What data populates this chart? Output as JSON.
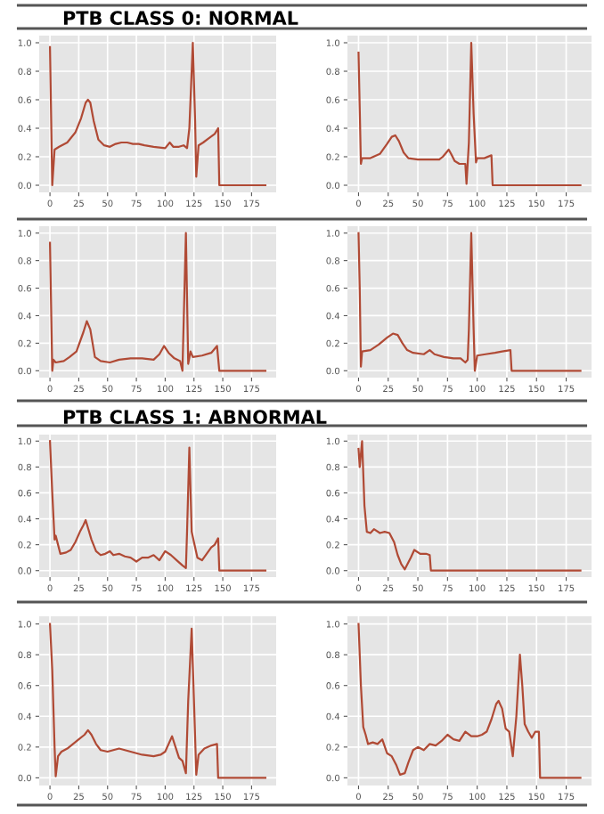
{
  "chart_data": [
    {
      "type": "line",
      "title": "PTB CLASS 0: NORMAL",
      "x": [
        0,
        2,
        4,
        8,
        15,
        22,
        27,
        31,
        33,
        35,
        38,
        42,
        47,
        52,
        57,
        62,
        67,
        72,
        77,
        82,
        90,
        100,
        104,
        107,
        112,
        116,
        119,
        121,
        124,
        126,
        127,
        129,
        133,
        138,
        143,
        146,
        147,
        187
      ],
      "series": [
        {
          "color": "#b04a35",
          "values": [
            0.97,
            0.0,
            0.25,
            0.27,
            0.3,
            0.37,
            0.47,
            0.58,
            0.6,
            0.58,
            0.45,
            0.32,
            0.28,
            0.27,
            0.29,
            0.3,
            0.3,
            0.29,
            0.29,
            0.28,
            0.27,
            0.26,
            0.3,
            0.27,
            0.27,
            0.28,
            0.26,
            0.4,
            1.0,
            0.45,
            0.06,
            0.28,
            0.3,
            0.33,
            0.36,
            0.4,
            0.0,
            0.0
          ]
        }
      ],
      "xlim": [
        -9.35,
        196.35
      ],
      "ylim": [
        -0.05,
        1.05
      ],
      "xticks": [
        0,
        25,
        50,
        75,
        100,
        125,
        150,
        175
      ],
      "yticks": [
        {
          "value": 0,
          "label": "0.0"
        },
        {
          "value": 0.2,
          "label": "0.2"
        },
        {
          "value": 0.4,
          "label": "0.4"
        },
        {
          "value": 0.6,
          "label": "0.6"
        },
        {
          "value": 0.8,
          "label": "0.8"
        },
        {
          "value": 1,
          "label": "1.0"
        }
      ],
      "grid": true
    },
    {
      "type": "line",
      "x": [
        0,
        2,
        3,
        10,
        18,
        24,
        28,
        31,
        34,
        38,
        42,
        50,
        60,
        68,
        71,
        74,
        76,
        78,
        81,
        85,
        90,
        91,
        93,
        95,
        97,
        99,
        100,
        106,
        112,
        113,
        187
      ],
      "series": [
        {
          "color": "#b04a35",
          "values": [
            0.93,
            0.15,
            0.19,
            0.19,
            0.22,
            0.29,
            0.34,
            0.35,
            0.31,
            0.23,
            0.19,
            0.18,
            0.18,
            0.18,
            0.2,
            0.23,
            0.25,
            0.22,
            0.17,
            0.15,
            0.15,
            0.01,
            0.3,
            1.0,
            0.5,
            0.16,
            0.19,
            0.19,
            0.21,
            0.0,
            0.0
          ]
        }
      ],
      "xlim": [
        -9.35,
        196.35
      ],
      "ylim": [
        -0.05,
        1.05
      ],
      "xticks": [
        0,
        25,
        50,
        75,
        100,
        125,
        150,
        175
      ],
      "yticks": [
        {
          "value": 0,
          "label": "0.0"
        },
        {
          "value": 0.2,
          "label": "0.2"
        },
        {
          "value": 0.4,
          "label": "0.4"
        },
        {
          "value": 0.6,
          "label": "0.6"
        },
        {
          "value": 0.8,
          "label": "0.8"
        },
        {
          "value": 1,
          "label": "1.0"
        }
      ],
      "grid": true
    },
    {
      "type": "line",
      "x": [
        0,
        2,
        3,
        5,
        12,
        17,
        23,
        29,
        32,
        35,
        39,
        44,
        52,
        60,
        70,
        80,
        90,
        95,
        99,
        103,
        108,
        113,
        115,
        118,
        120,
        122,
        124,
        132,
        140,
        145,
        147,
        187
      ],
      "series": [
        {
          "color": "#b04a35",
          "values": [
            0.93,
            0.0,
            0.08,
            0.06,
            0.07,
            0.1,
            0.14,
            0.28,
            0.36,
            0.3,
            0.1,
            0.07,
            0.06,
            0.08,
            0.09,
            0.09,
            0.08,
            0.12,
            0.18,
            0.13,
            0.09,
            0.07,
            0.0,
            1.0,
            0.05,
            0.14,
            0.1,
            0.11,
            0.13,
            0.18,
            0.0,
            0.0
          ]
        }
      ],
      "xlim": [
        -9.35,
        196.35
      ],
      "ylim": [
        -0.05,
        1.05
      ],
      "xticks": [
        0,
        25,
        50,
        75,
        100,
        125,
        150,
        175
      ],
      "yticks": [
        {
          "value": 0,
          "label": "0.0"
        },
        {
          "value": 0.2,
          "label": "0.2"
        },
        {
          "value": 0.4,
          "label": "0.4"
        },
        {
          "value": 0.6,
          "label": "0.6"
        },
        {
          "value": 0.8,
          "label": "0.8"
        },
        {
          "value": 1,
          "label": "1.0"
        }
      ],
      "grid": true
    },
    {
      "type": "line",
      "x": [
        0,
        1,
        2,
        3,
        10,
        17,
        24,
        29,
        33,
        37,
        41,
        46,
        55,
        60,
        64,
        72,
        80,
        86,
        90,
        92,
        93,
        95,
        97,
        98,
        100,
        107,
        115,
        121,
        128,
        129,
        187
      ],
      "series": [
        {
          "color": "#b04a35",
          "values": [
            1.0,
            0.6,
            0.03,
            0.14,
            0.15,
            0.19,
            0.24,
            0.27,
            0.26,
            0.2,
            0.15,
            0.13,
            0.12,
            0.15,
            0.12,
            0.1,
            0.09,
            0.09,
            0.06,
            0.08,
            0.3,
            1.0,
            0.3,
            0.0,
            0.11,
            0.12,
            0.13,
            0.14,
            0.15,
            0.0,
            0.0
          ]
        }
      ],
      "xlim": [
        -9.35,
        196.35
      ],
      "ylim": [
        -0.05,
        1.05
      ],
      "xticks": [
        0,
        25,
        50,
        75,
        100,
        125,
        150,
        175
      ],
      "yticks": [
        {
          "value": 0,
          "label": "0.0"
        },
        {
          "value": 0.2,
          "label": "0.2"
        },
        {
          "value": 0.4,
          "label": "0.4"
        },
        {
          "value": 0.6,
          "label": "0.6"
        },
        {
          "value": 0.8,
          "label": "0.8"
        },
        {
          "value": 1,
          "label": "1.0"
        }
      ],
      "grid": true
    },
    {
      "type": "line",
      "title": "PTB CLASS 1: ABNORMAL",
      "x": [
        0,
        2,
        4,
        5,
        7,
        9,
        14,
        18,
        22,
        26,
        29,
        31,
        33,
        36,
        40,
        44,
        48,
        52,
        55,
        60,
        65,
        70,
        75,
        80,
        85,
        90,
        95,
        100,
        105,
        110,
        115,
        118,
        119,
        121,
        123,
        125,
        128,
        132,
        136,
        140,
        143,
        146,
        147,
        187
      ],
      "series": [
        {
          "color": "#b04a35",
          "values": [
            1.0,
            0.6,
            0.24,
            0.27,
            0.2,
            0.13,
            0.14,
            0.16,
            0.22,
            0.3,
            0.35,
            0.39,
            0.33,
            0.24,
            0.15,
            0.12,
            0.13,
            0.15,
            0.12,
            0.13,
            0.11,
            0.1,
            0.07,
            0.1,
            0.1,
            0.12,
            0.08,
            0.15,
            0.12,
            0.08,
            0.04,
            0.02,
            0.3,
            0.95,
            0.3,
            0.22,
            0.1,
            0.08,
            0.13,
            0.18,
            0.2,
            0.25,
            0.0,
            0.0
          ]
        }
      ],
      "xlim": [
        -9.35,
        196.35
      ],
      "ylim": [
        -0.05,
        1.05
      ],
      "xticks": [
        0,
        25,
        50,
        75,
        100,
        125,
        150,
        175
      ],
      "yticks": [
        {
          "value": 0,
          "label": "0.0"
        },
        {
          "value": 0.2,
          "label": "0.2"
        },
        {
          "value": 0.4,
          "label": "0.4"
        },
        {
          "value": 0.6,
          "label": "0.6"
        },
        {
          "value": 0.8,
          "label": "0.8"
        },
        {
          "value": 1,
          "label": "1.0"
        }
      ],
      "grid": true
    },
    {
      "type": "line",
      "x": [
        0,
        1,
        3,
        5,
        7,
        10,
        13,
        18,
        22,
        26,
        30,
        33,
        36,
        39,
        44,
        47,
        52,
        57,
        60,
        61,
        187
      ],
      "series": [
        {
          "color": "#b04a35",
          "values": [
            0.94,
            0.8,
            1.0,
            0.5,
            0.3,
            0.29,
            0.32,
            0.29,
            0.3,
            0.29,
            0.22,
            0.12,
            0.05,
            0.01,
            0.1,
            0.16,
            0.13,
            0.13,
            0.12,
            0.0,
            0.0
          ]
        }
      ],
      "xlim": [
        -9.35,
        196.35
      ],
      "ylim": [
        -0.05,
        1.05
      ],
      "xticks": [
        0,
        25,
        50,
        75,
        100,
        125,
        150,
        175
      ],
      "yticks": [
        {
          "value": 0,
          "label": "0.0"
        },
        {
          "value": 0.2,
          "label": "0.2"
        },
        {
          "value": 0.4,
          "label": "0.4"
        },
        {
          "value": 0.6,
          "label": "0.6"
        },
        {
          "value": 0.8,
          "label": "0.8"
        },
        {
          "value": 1,
          "label": "1.0"
        }
      ],
      "grid": true
    },
    {
      "type": "line",
      "x": [
        0,
        2,
        4,
        5,
        7,
        10,
        15,
        20,
        25,
        30,
        33,
        36,
        40,
        44,
        50,
        60,
        70,
        80,
        90,
        96,
        100,
        103,
        106,
        109,
        112,
        115,
        118,
        120,
        123,
        125,
        127,
        129,
        134,
        140,
        145,
        146,
        187
      ],
      "series": [
        {
          "color": "#b04a35",
          "values": [
            1.0,
            0.7,
            0.2,
            0.01,
            0.14,
            0.17,
            0.19,
            0.22,
            0.25,
            0.28,
            0.31,
            0.28,
            0.22,
            0.18,
            0.17,
            0.19,
            0.17,
            0.15,
            0.14,
            0.15,
            0.17,
            0.22,
            0.27,
            0.2,
            0.13,
            0.11,
            0.03,
            0.5,
            0.97,
            0.5,
            0.02,
            0.15,
            0.19,
            0.21,
            0.22,
            0.0,
            0.0
          ]
        }
      ],
      "xlim": [
        -9.35,
        196.35
      ],
      "ylim": [
        -0.05,
        1.05
      ],
      "xticks": [
        0,
        25,
        50,
        75,
        100,
        125,
        150,
        175
      ],
      "yticks": [
        {
          "value": 0,
          "label": "0.0"
        },
        {
          "value": 0.2,
          "label": "0.2"
        },
        {
          "value": 0.4,
          "label": "0.4"
        },
        {
          "value": 0.6,
          "label": "0.6"
        },
        {
          "value": 0.8,
          "label": "0.8"
        },
        {
          "value": 1,
          "label": "1.0"
        }
      ],
      "grid": true
    },
    {
      "type": "line",
      "x": [
        0,
        2,
        4,
        6,
        8,
        12,
        16,
        20,
        24,
        28,
        32,
        35,
        39,
        42,
        46,
        50,
        55,
        60,
        65,
        70,
        75,
        80,
        85,
        90,
        95,
        100,
        104,
        108,
        112,
        116,
        118,
        121,
        124,
        127,
        130,
        133,
        136,
        138,
        140,
        143,
        146,
        149,
        152,
        153,
        187
      ],
      "series": [
        {
          "color": "#b04a35",
          "values": [
            1.0,
            0.6,
            0.33,
            0.28,
            0.22,
            0.23,
            0.22,
            0.25,
            0.16,
            0.14,
            0.08,
            0.02,
            0.03,
            0.1,
            0.18,
            0.2,
            0.18,
            0.22,
            0.21,
            0.24,
            0.28,
            0.25,
            0.24,
            0.3,
            0.27,
            0.27,
            0.28,
            0.3,
            0.38,
            0.48,
            0.5,
            0.45,
            0.32,
            0.3,
            0.14,
            0.4,
            0.8,
            0.6,
            0.35,
            0.3,
            0.26,
            0.3,
            0.3,
            0.0,
            0.0
          ]
        }
      ],
      "xlim": [
        -9.35,
        196.35
      ],
      "ylim": [
        -0.05,
        1.05
      ],
      "xticks": [
        0,
        25,
        50,
        75,
        100,
        125,
        150,
        175
      ],
      "yticks": [
        {
          "value": 0,
          "label": "0.0"
        },
        {
          "value": 0.2,
          "label": "0.2"
        },
        {
          "value": 0.4,
          "label": "0.4"
        },
        {
          "value": 0.6,
          "label": "0.6"
        },
        {
          "value": 0.8,
          "label": "0.8"
        },
        {
          "value": 1,
          "label": "1.0"
        }
      ],
      "grid": true
    }
  ]
}
